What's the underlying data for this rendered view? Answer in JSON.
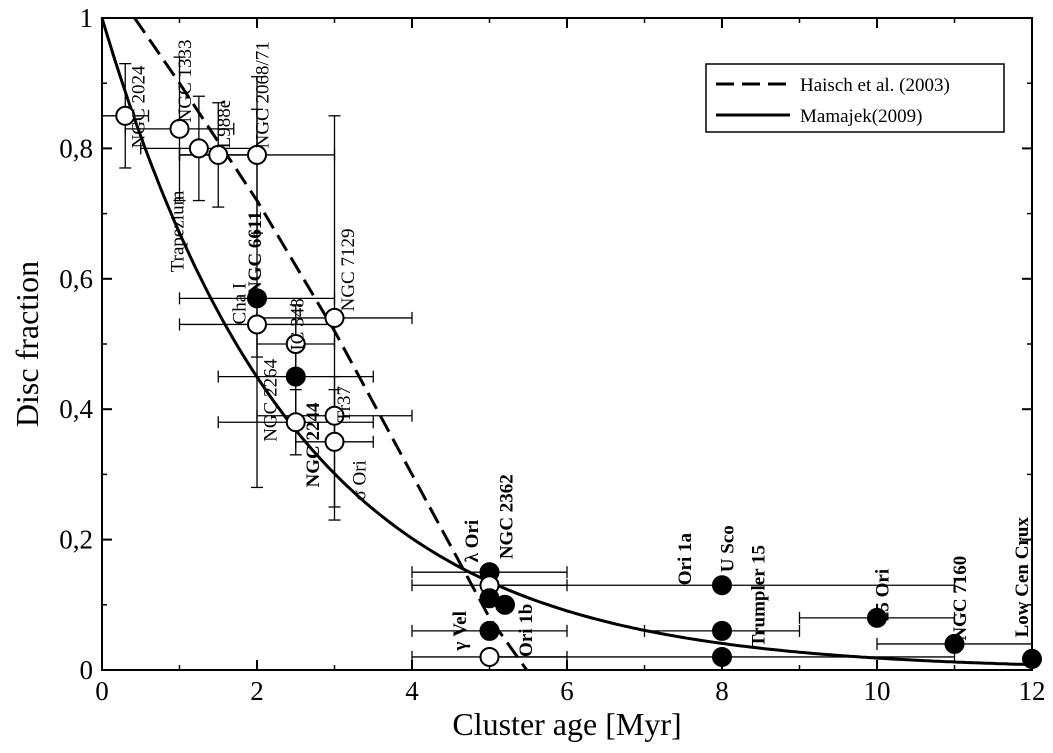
{
  "chart_data": {
    "type": "scatter",
    "xlabel": "Cluster age [Myr]",
    "ylabel": "Disc fraction",
    "xlim": [
      0,
      12
    ],
    "ylim": [
      0,
      1
    ],
    "x_ticks": [
      0,
      2,
      4,
      6,
      8,
      10,
      12
    ],
    "y_ticks": [
      {
        "value": 0,
        "label": "0"
      },
      {
        "value": 0.2,
        "label": "0,2"
      },
      {
        "value": 0.4,
        "label": "0,4"
      },
      {
        "value": 0.6,
        "label": "0,6"
      },
      {
        "value": 0.8,
        "label": "0,8"
      },
      {
        "value": 1,
        "label": "1"
      }
    ],
    "grid": false,
    "legend_position": "top-right",
    "legend": [
      {
        "label": "Haisch et al. (2003)",
        "style": "dashed"
      },
      {
        "label": "Mamajek(2009)",
        "style": "solid"
      }
    ],
    "curves": [
      {
        "name": "Haisch et al. (2003)",
        "style": "dashed",
        "x": [
          0.42,
          1.0,
          1.5,
          2.0,
          2.5,
          3.0,
          3.5,
          4.0,
          4.5,
          5.0,
          5.48
        ],
        "y": [
          1.0,
          0.9,
          0.81,
          0.72,
          0.62,
          0.52,
          0.41,
          0.3,
          0.19,
          0.08,
          0.0
        ]
      },
      {
        "name": "Mamajek(2009)",
        "style": "solid",
        "function": "exp(-t/2.5)"
      }
    ],
    "points": [
      {
        "label": "NGC 2024",
        "x": 0.3,
        "y": 0.85,
        "filled": false,
        "xerr": [
          0.3,
          0.3
        ],
        "yerr": [
          0.08,
          0.08
        ]
      },
      {
        "label": "NGC 1333",
        "x": 1.0,
        "y": 0.83,
        "filled": false,
        "xerr": [
          0.7,
          0.7
        ],
        "yerr": [
          0.11,
          0.11
        ]
      },
      {
        "label": "Trapezium",
        "x": 1.25,
        "y": 0.8,
        "filled": false,
        "xerr": [
          0.75,
          0.75
        ],
        "yerr": [
          0.08,
          0.08
        ]
      },
      {
        "label": "L988e",
        "x": 1.5,
        "y": 0.79,
        "filled": false,
        "xerr": [
          0.5,
          0.5
        ],
        "yerr": [
          0.08,
          0.08
        ]
      },
      {
        "label": "NGC 2068/71",
        "x": 2.0,
        "y": 0.79,
        "filled": false,
        "xerr": [
          1.0,
          1.0
        ],
        "yerr": [
          0.12,
          0.12
        ]
      },
      {
        "label": "NGC 6611",
        "x": 2.0,
        "y": 0.57,
        "filled": true,
        "xerr": [
          1.0,
          1.0
        ],
        "yerr": [
          0.29,
          0.29
        ]
      },
      {
        "label": "Cha I",
        "x": 2.0,
        "y": 0.53,
        "filled": false,
        "xerr": [
          1.0,
          1.0
        ],
        "yerr": [
          0.05,
          0.05
        ]
      },
      {
        "label": "IC 348",
        "x": 2.5,
        "y": 0.5,
        "filled": false,
        "xerr": [
          0.5,
          0.5
        ],
        "yerr": [
          0.06,
          0.06
        ]
      },
      {
        "label": "NGC 7129",
        "x": 3.0,
        "y": 0.54,
        "filled": false,
        "xerr": [
          1.0,
          1.0
        ],
        "yerr": [
          0.31,
          0.31
        ]
      },
      {
        "label": "NGC 2264",
        "x": 2.5,
        "y": 0.45,
        "filled": true,
        "xerr": [
          1.0,
          1.0
        ],
        "yerr": [
          0.08,
          0.08
        ]
      },
      {
        "label": "NGC 2244",
        "x": 2.5,
        "y": 0.38,
        "filled": false,
        "xerr": [
          1.0,
          1.0
        ],
        "yerr": [
          0.05,
          0.05
        ]
      },
      {
        "label": "Tr37",
        "x": 3.0,
        "y": 0.39,
        "filled": false,
        "xerr": [
          1.0,
          1.0
        ],
        "yerr": [
          0.04,
          0.04
        ]
      },
      {
        "label": "σ Ori",
        "x": 3.0,
        "y": 0.35,
        "filled": false,
        "xerr": [
          0.5,
          0.5
        ],
        "yerr": [
          0.1,
          0.1
        ]
      },
      {
        "label": "NGC 2362",
        "x": 5.0,
        "y": 0.15,
        "filled": true,
        "xerr": [
          1.0,
          1.0
        ],
        "yerr": [
          0.0,
          0.0
        ]
      },
      {
        "label": "λ Ori",
        "x": 5.0,
        "y": 0.13,
        "filled": false,
        "xerr": [
          1.0,
          1.0
        ],
        "yerr": [
          0.0,
          0.0
        ]
      },
      {
        "label": "γ Vel",
        "x": 5.0,
        "y": 0.11,
        "filled": true,
        "xerr": [
          0.0,
          0.0
        ],
        "yerr": [
          0.0,
          0.0
        ]
      },
      {
        "label": "Ori 1b",
        "x": 5.2,
        "y": 0.1,
        "filled": true,
        "xerr": [
          0.0,
          0.0
        ],
        "yerr": [
          0.0,
          0.0
        ]
      },
      {
        "label": "Ori 1a",
        "x": 5.0,
        "y": 0.06,
        "filled": true,
        "xerr": [
          1.0,
          1.0
        ],
        "yerr": [
          0.0,
          0.0
        ]
      },
      {
        "label": "Ori 1a",
        "x": 5.0,
        "y": 0.02,
        "filled": false,
        "xerr": [
          1.0,
          1.0
        ],
        "yerr": [
          0.0,
          0.0
        ]
      },
      {
        "label": "U Sco",
        "x": 8.0,
        "y": 0.13,
        "filled": true,
        "xerr": [
          3.0,
          3.0
        ],
        "yerr": [
          0.0,
          0.0
        ]
      },
      {
        "label": "Trumpler 15",
        "x": 8.0,
        "y": 0.06,
        "filled": true,
        "xerr": [
          1.0,
          1.0
        ],
        "yerr": [
          0.0,
          0.0
        ]
      },
      {
        "label": "Trumpler 15",
        "x": 8.0,
        "y": 0.02,
        "filled": true,
        "xerr": [
          3.0,
          3.0
        ],
        "yerr": [
          0.0,
          0.0
        ]
      },
      {
        "label": "25 Ori",
        "x": 10.0,
        "y": 0.08,
        "filled": true,
        "xerr": [
          1.0,
          1.0
        ],
        "yerr": [
          0.0,
          0.0
        ]
      },
      {
        "label": "NGC 7160",
        "x": 11.0,
        "y": 0.04,
        "filled": true,
        "xerr": [
          1.0,
          1.0
        ],
        "yerr": [
          0.0,
          0.0
        ]
      },
      {
        "label": "Low Cen Crux",
        "x": 12.0,
        "y": 0.017,
        "filled": true,
        "xerr": [
          0.0,
          0.0
        ],
        "yerr": [
          0.0,
          0.0
        ]
      }
    ],
    "annotations": [
      {
        "text": "NGC 2024",
        "x": 0.55,
        "y": 0.8,
        "rotate": -90,
        "bold": false
      },
      {
        "text": "NGC 1333",
        "x": 1.15,
        "y": 0.84,
        "rotate": -90,
        "bold": false
      },
      {
        "text": "Trapezium",
        "x": 1.05,
        "y": 0.61,
        "rotate": -90,
        "bold": false
      },
      {
        "text": "L988e",
        "x": 1.65,
        "y": 0.8,
        "rotate": -90,
        "bold": false
      },
      {
        "text": "NGC 2068/71",
        "x": 2.15,
        "y": 0.8,
        "rotate": -90,
        "bold": false
      },
      {
        "text": "NGC 6611",
        "x": 2.05,
        "y": 0.575,
        "rotate": -90,
        "bold": true
      },
      {
        "text": "Cha I",
        "x": 1.85,
        "y": 0.53,
        "rotate": -90,
        "bold": false
      },
      {
        "text": "IC 348",
        "x": 2.6,
        "y": 0.49,
        "rotate": -90,
        "bold": false
      },
      {
        "text": "NGC 7129",
        "x": 3.25,
        "y": 0.55,
        "rotate": -90,
        "bold": false
      },
      {
        "text": "NGC 2264",
        "x": 2.25,
        "y": 0.35,
        "rotate": -90,
        "bold": false
      },
      {
        "text": "NGC 2244",
        "x": 2.8,
        "y": 0.28,
        "rotate": -90,
        "bold": true
      },
      {
        "text": "Tr37",
        "x": 3.2,
        "y": 0.38,
        "rotate": -90,
        "bold": false
      },
      {
        "text": "σ Ori",
        "x": 3.4,
        "y": 0.26,
        "rotate": -90,
        "bold": false
      },
      {
        "text": "NGC 2362",
        "x": 5.3,
        "y": 0.17,
        "rotate": -90,
        "bold": true
      },
      {
        "text": "λ Ori",
        "x": 4.85,
        "y": 0.165,
        "rotate": -90,
        "bold": true
      },
      {
        "text": "γ Vel",
        "x": 4.7,
        "y": 0.03,
        "rotate": -90,
        "bold": true
      },
      {
        "text": "Ori 1b",
        "x": 5.55,
        "y": 0.02,
        "rotate": -90,
        "bold": true
      },
      {
        "text": "Ori 1a",
        "x": 7.6,
        "y": 0.13,
        "rotate": -90,
        "bold": true
      },
      {
        "text": "U Sco",
        "x": 8.15,
        "y": 0.15,
        "rotate": -90,
        "bold": true
      },
      {
        "text": "Trumpler 15",
        "x": 8.55,
        "y": 0.035,
        "rotate": -90,
        "bold": true
      },
      {
        "text": "25 Ori",
        "x": 10.15,
        "y": 0.075,
        "rotate": -90,
        "bold": true
      },
      {
        "text": "NGC 7160",
        "x": 11.15,
        "y": 0.045,
        "rotate": -90,
        "bold": true
      },
      {
        "text": "Low Cen Crux",
        "x": 11.95,
        "y": 0.05,
        "rotate": -90,
        "bold": true
      }
    ]
  }
}
